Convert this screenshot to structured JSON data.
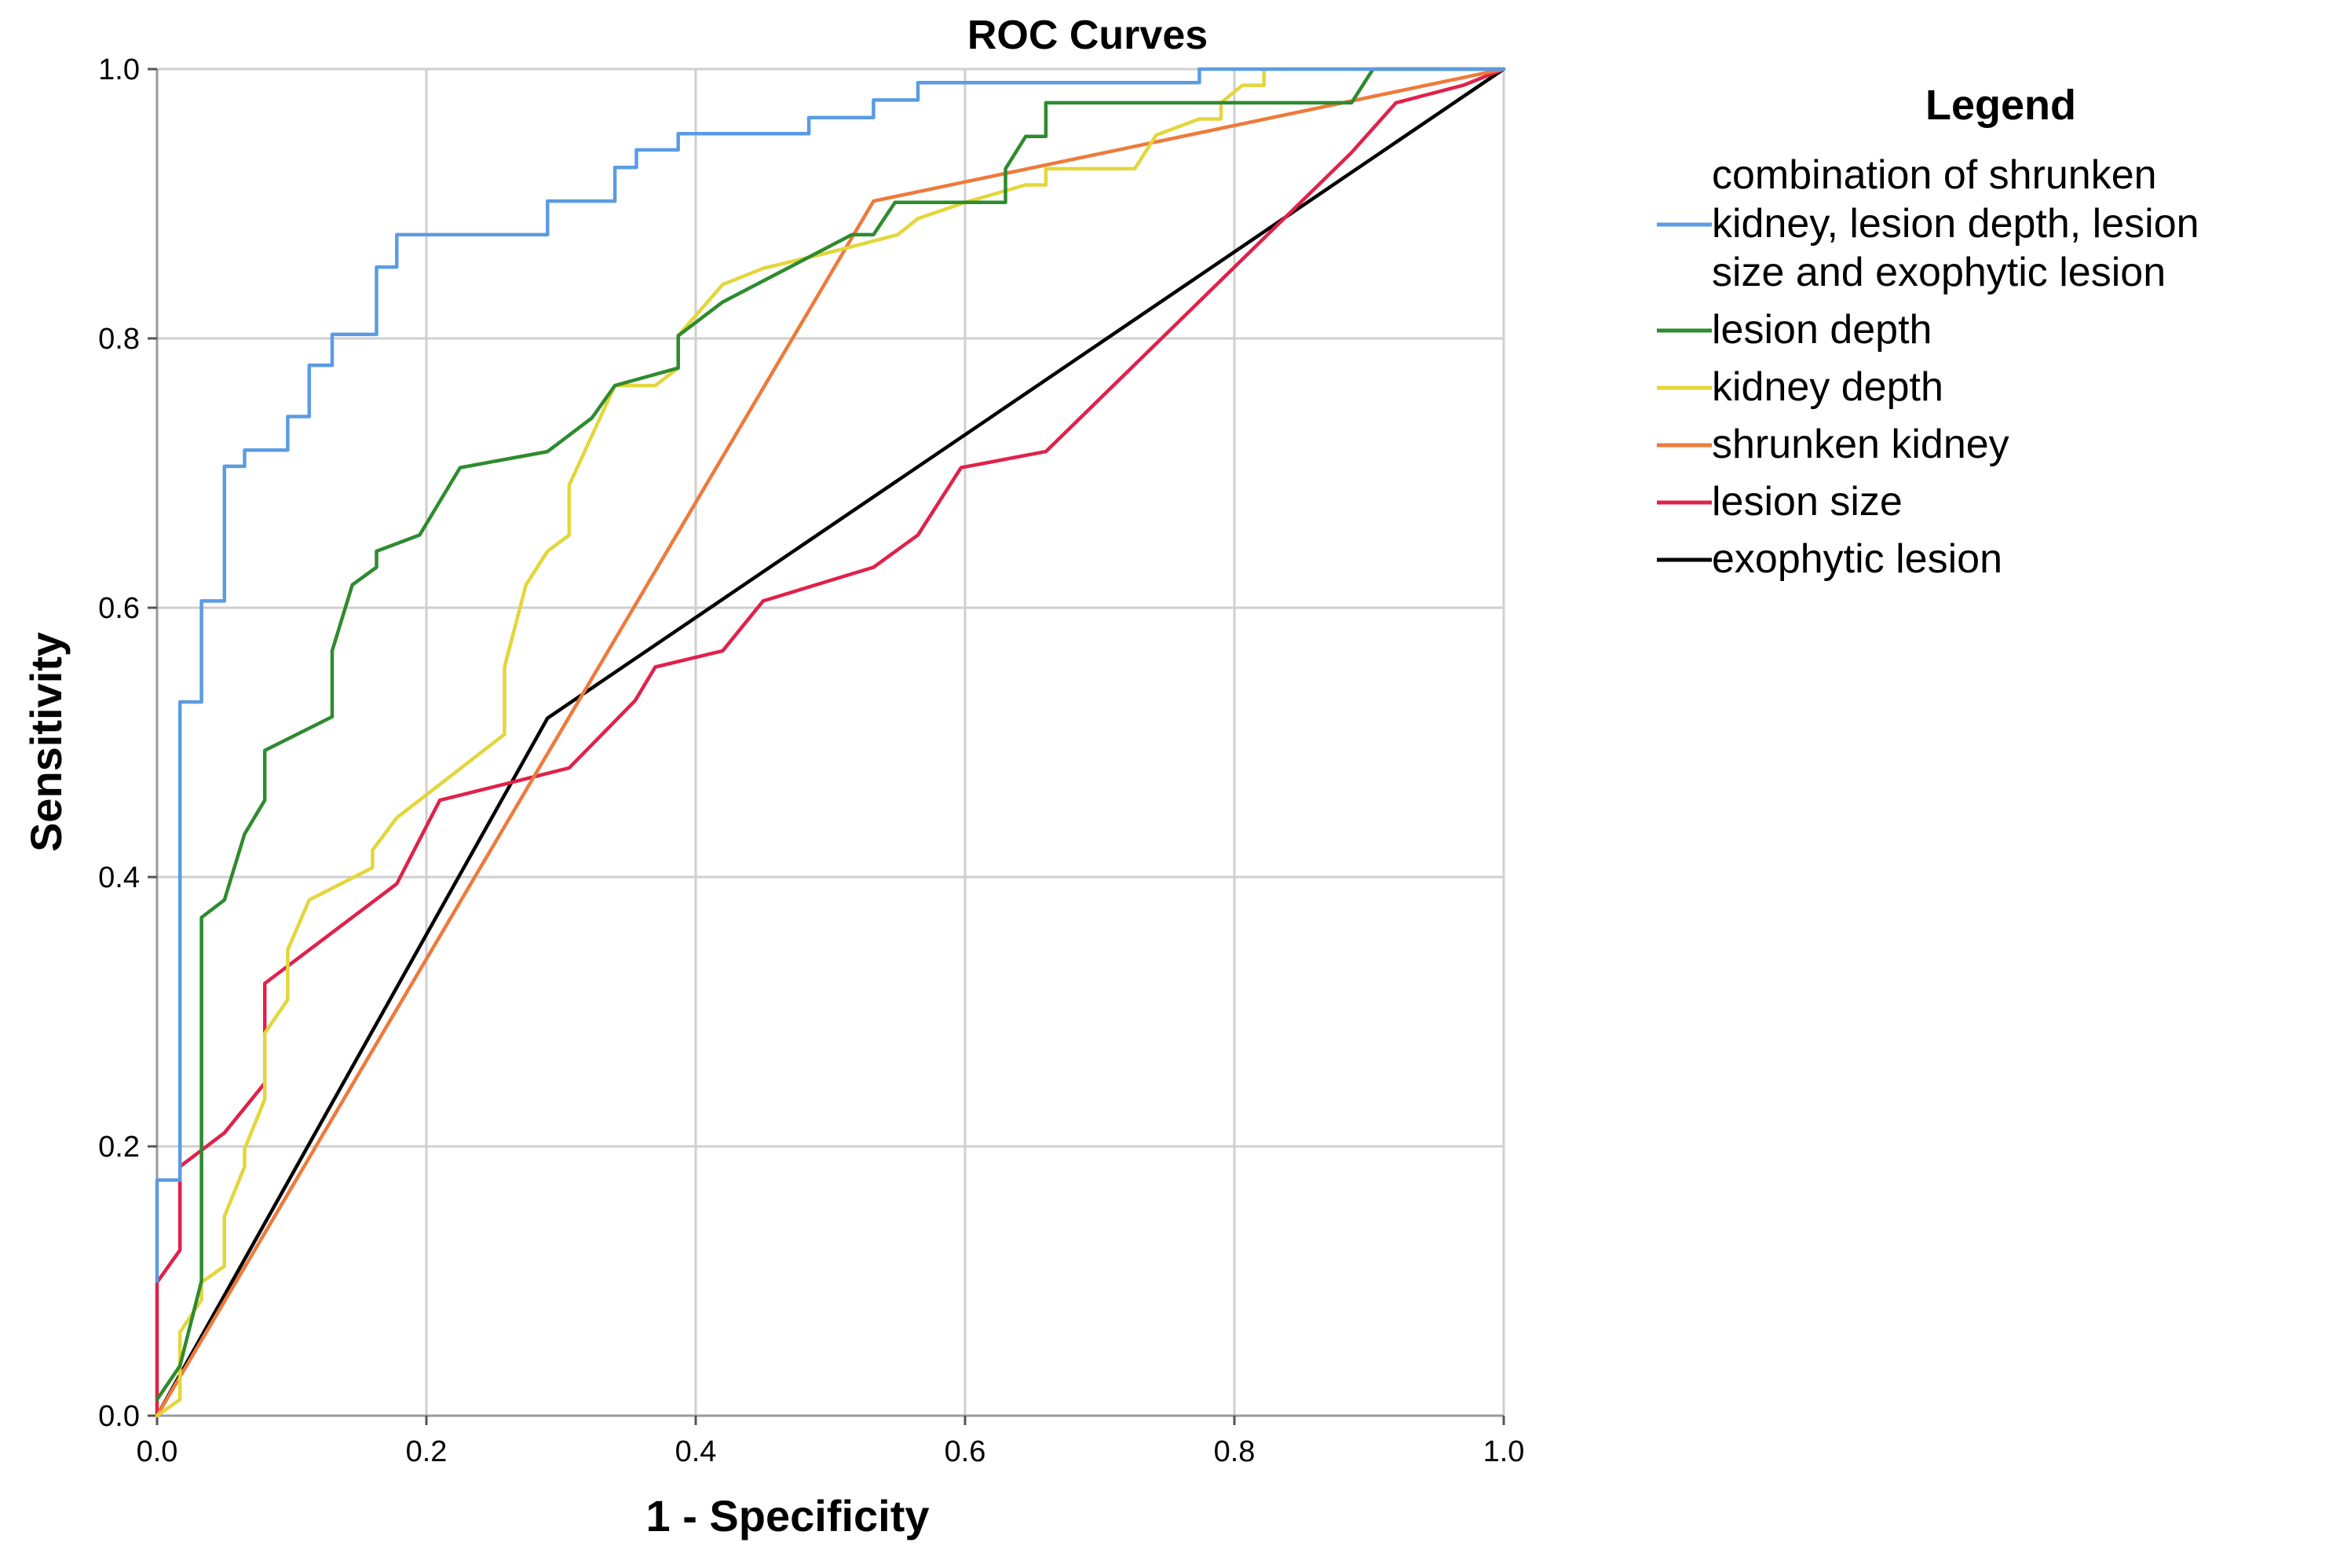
{
  "chart_data": {
    "type": "line",
    "title": "ROC Curves",
    "xlabel": "1 - Specificity",
    "ylabel": "Sensitivity",
    "xlim": [
      0,
      1
    ],
    "ylim": [
      0,
      1
    ],
    "xticks": [
      0.0,
      0.2,
      0.4,
      0.6,
      0.8,
      1.0
    ],
    "yticks": [
      0.0,
      0.2,
      0.4,
      0.6,
      0.8,
      1.0
    ],
    "xtick_labels": [
      "0.0",
      "0.2",
      "0.4",
      "0.6",
      "0.8",
      "1.0"
    ],
    "ytick_labels": [
      "0.0",
      "0.2",
      "0.4",
      "0.6",
      "0.8",
      "1.0"
    ],
    "grid": true,
    "legend": {
      "title": "Legend",
      "position": "right"
    },
    "series": [
      {
        "name": "combination of shrunken kidney, lesion depth, lesion size and exophytic lesion",
        "legend_lines": [
          "combination of shrunken",
          "kidney, lesion depth, lesion",
          "size and exophytic lesion"
        ],
        "color": "#5b9be3",
        "points": [
          [
            0,
            0.1
          ],
          [
            0,
            0.175
          ],
          [
            0.017,
            0.175
          ],
          [
            0.017,
            0.53
          ],
          [
            0.033,
            0.53
          ],
          [
            0.033,
            0.605
          ],
          [
            0.05,
            0.605
          ],
          [
            0.05,
            0.705
          ],
          [
            0.065,
            0.705
          ],
          [
            0.065,
            0.717
          ],
          [
            0.097,
            0.717
          ],
          [
            0.097,
            0.742
          ],
          [
            0.113,
            0.742
          ],
          [
            0.113,
            0.78
          ],
          [
            0.13,
            0.78
          ],
          [
            0.13,
            0.803
          ],
          [
            0.163,
            0.803
          ],
          [
            0.163,
            0.853
          ],
          [
            0.178,
            0.853
          ],
          [
            0.178,
            0.877
          ],
          [
            0.29,
            0.877
          ],
          [
            0.29,
            0.902
          ],
          [
            0.34,
            0.902
          ],
          [
            0.34,
            0.927
          ],
          [
            0.356,
            0.927
          ],
          [
            0.356,
            0.94
          ],
          [
            0.387,
            0.94
          ],
          [
            0.387,
            0.952
          ],
          [
            0.484,
            0.952
          ],
          [
            0.484,
            0.964
          ],
          [
            0.532,
            0.964
          ],
          [
            0.532,
            0.977
          ],
          [
            0.565,
            0.977
          ],
          [
            0.565,
            0.99
          ],
          [
            0.774,
            0.99
          ],
          [
            0.774,
            1.0
          ],
          [
            1.0,
            1.0
          ]
        ]
      },
      {
        "name": "lesion depth",
        "legend_lines": [
          "lesion depth"
        ],
        "color": "#2e8b2e",
        "points": [
          [
            0,
            0.012
          ],
          [
            0.017,
            0.037
          ],
          [
            0.033,
            0.1
          ],
          [
            0.033,
            0.37
          ],
          [
            0.05,
            0.383
          ],
          [
            0.065,
            0.432
          ],
          [
            0.08,
            0.457
          ],
          [
            0.08,
            0.494
          ],
          [
            0.13,
            0.519
          ],
          [
            0.13,
            0.568
          ],
          [
            0.145,
            0.617
          ],
          [
            0.163,
            0.63
          ],
          [
            0.163,
            0.642
          ],
          [
            0.195,
            0.654
          ],
          [
            0.225,
            0.704
          ],
          [
            0.29,
            0.716
          ],
          [
            0.323,
            0.741
          ],
          [
            0.34,
            0.765
          ],
          [
            0.387,
            0.778
          ],
          [
            0.387,
            0.802
          ],
          [
            0.42,
            0.827
          ],
          [
            0.516,
            0.877
          ],
          [
            0.532,
            0.877
          ],
          [
            0.548,
            0.901
          ],
          [
            0.63,
            0.901
          ],
          [
            0.63,
            0.926
          ],
          [
            0.645,
            0.95
          ],
          [
            0.66,
            0.95
          ],
          [
            0.66,
            0.975
          ],
          [
            0.887,
            0.975
          ],
          [
            0.903,
            1.0
          ],
          [
            1.0,
            1.0
          ]
        ]
      },
      {
        "name": "kidney depth",
        "legend_lines": [
          "kidney depth"
        ],
        "color": "#e3d63a",
        "points": [
          [
            0,
            0
          ],
          [
            0.017,
            0.012
          ],
          [
            0.017,
            0.062
          ],
          [
            0.033,
            0.086
          ],
          [
            0.033,
            0.099
          ],
          [
            0.05,
            0.111
          ],
          [
            0.05,
            0.148
          ],
          [
            0.065,
            0.185
          ],
          [
            0.065,
            0.198
          ],
          [
            0.08,
            0.235
          ],
          [
            0.08,
            0.284
          ],
          [
            0.097,
            0.309
          ],
          [
            0.097,
            0.346
          ],
          [
            0.113,
            0.383
          ],
          [
            0.16,
            0.407
          ],
          [
            0.16,
            0.42
          ],
          [
            0.178,
            0.444
          ],
          [
            0.258,
            0.506
          ],
          [
            0.258,
            0.556
          ],
          [
            0.274,
            0.617
          ],
          [
            0.29,
            0.642
          ],
          [
            0.306,
            0.654
          ],
          [
            0.306,
            0.691
          ],
          [
            0.34,
            0.765
          ],
          [
            0.37,
            0.765
          ],
          [
            0.387,
            0.778
          ],
          [
            0.387,
            0.802
          ],
          [
            0.42,
            0.84
          ],
          [
            0.45,
            0.852
          ],
          [
            0.5,
            0.864
          ],
          [
            0.55,
            0.877
          ],
          [
            0.565,
            0.889
          ],
          [
            0.6,
            0.901
          ],
          [
            0.645,
            0.914
          ],
          [
            0.66,
            0.914
          ],
          [
            0.66,
            0.926
          ],
          [
            0.726,
            0.926
          ],
          [
            0.742,
            0.951
          ],
          [
            0.774,
            0.963
          ],
          [
            0.79,
            0.963
          ],
          [
            0.79,
            0.975
          ],
          [
            0.806,
            0.988
          ],
          [
            0.822,
            0.988
          ],
          [
            0.822,
            1.0
          ],
          [
            1.0,
            1.0
          ]
        ]
      },
      {
        "name": "shrunken kidney",
        "legend_lines": [
          "shrunken kidney"
        ],
        "color": "#ee7a3a",
        "points": [
          [
            0,
            0
          ],
          [
            0.532,
            0.902
          ],
          [
            1.0,
            1.0
          ]
        ]
      },
      {
        "name": "lesion size",
        "legend_lines": [
          "lesion size"
        ],
        "color": "#e0214a",
        "points": [
          [
            0,
            0
          ],
          [
            0,
            0.099
          ],
          [
            0.017,
            0.123
          ],
          [
            0.017,
            0.185
          ],
          [
            0.05,
            0.21
          ],
          [
            0.08,
            0.247
          ],
          [
            0.08,
            0.321
          ],
          [
            0.178,
            0.395
          ],
          [
            0.21,
            0.457
          ],
          [
            0.306,
            0.481
          ],
          [
            0.355,
            0.531
          ],
          [
            0.37,
            0.556
          ],
          [
            0.42,
            0.568
          ],
          [
            0.45,
            0.605
          ],
          [
            0.532,
            0.63
          ],
          [
            0.565,
            0.654
          ],
          [
            0.597,
            0.704
          ],
          [
            0.66,
            0.716
          ],
          [
            0.887,
            0.938
          ],
          [
            0.92,
            0.975
          ],
          [
            0.97,
            0.988
          ],
          [
            1.0,
            1.0
          ]
        ]
      },
      {
        "name": "exophytic lesion",
        "legend_lines": [
          "exophytic lesion"
        ],
        "color": "#000000",
        "points": [
          [
            0,
            0
          ],
          [
            0.29,
            0.518
          ],
          [
            1.0,
            1.0
          ]
        ]
      }
    ]
  }
}
